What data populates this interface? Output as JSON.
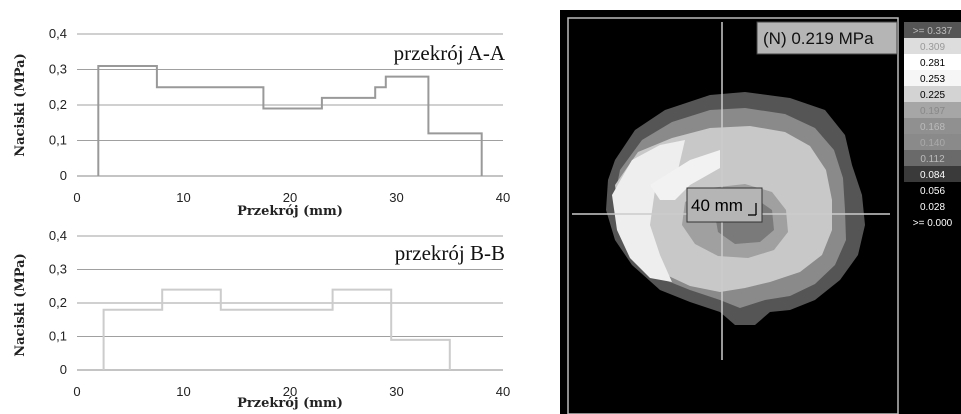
{
  "chart_data": [
    {
      "type": "line",
      "step": true,
      "title": "przekrój A-A",
      "xlabel": "Przekrój (mm)",
      "ylabel": "Naciski (MPa)",
      "xlim": [
        0,
        40
      ],
      "ylim": [
        0,
        0.4
      ],
      "xticks": [
        "0",
        "10",
        "20",
        "30",
        "40"
      ],
      "yticks": [
        "0",
        "0,1",
        "0,2",
        "0,3",
        "0,4"
      ],
      "grid": true,
      "series_color": "#999999",
      "points": [
        {
          "x": 2,
          "y": 0
        },
        {
          "x": 2,
          "y": 0.31
        },
        {
          "x": 7.5,
          "y": 0.31
        },
        {
          "x": 7.5,
          "y": 0.25
        },
        {
          "x": 17.5,
          "y": 0.25
        },
        {
          "x": 17.5,
          "y": 0.19
        },
        {
          "x": 23,
          "y": 0.19
        },
        {
          "x": 23,
          "y": 0.22
        },
        {
          "x": 28,
          "y": 0.22
        },
        {
          "x": 28,
          "y": 0.25
        },
        {
          "x": 29,
          "y": 0.25
        },
        {
          "x": 29,
          "y": 0.28
        },
        {
          "x": 33,
          "y": 0.28
        },
        {
          "x": 33,
          "y": 0.12
        },
        {
          "x": 38,
          "y": 0.12
        },
        {
          "x": 38,
          "y": 0
        }
      ]
    },
    {
      "type": "line",
      "step": true,
      "title": "przekrój B-B",
      "xlabel": "Przekrój (mm)",
      "ylabel": "Naciski (MPa)",
      "xlim": [
        0,
        40
      ],
      "ylim": [
        0,
        0.4
      ],
      "xticks": [
        "0",
        "10",
        "20",
        "30",
        "40"
      ],
      "yticks": [
        "0",
        "0,1",
        "0,2",
        "0,3",
        "0,4"
      ],
      "grid": true,
      "series_color": "#cccccc",
      "points": [
        {
          "x": 2.5,
          "y": 0
        },
        {
          "x": 2.5,
          "y": 0.18
        },
        {
          "x": 8,
          "y": 0.18
        },
        {
          "x": 8,
          "y": 0.24
        },
        {
          "x": 13.5,
          "y": 0.24
        },
        {
          "x": 13.5,
          "y": 0.18
        },
        {
          "x": 24,
          "y": 0.18
        },
        {
          "x": 24,
          "y": 0.24
        },
        {
          "x": 29.5,
          "y": 0.24
        },
        {
          "x": 29.5,
          "y": 0.09
        },
        {
          "x": 35,
          "y": 0.09
        },
        {
          "x": 35,
          "y": 0
        }
      ]
    },
    {
      "type": "heatmap",
      "readout": "(N) 0.219 MPa",
      "scale_label": "40 mm",
      "legend_position": "right",
      "legend": [
        {
          "label": ">= 0.337",
          "color": "#555555",
          "text_color": "#bbbbbb"
        },
        {
          "label": "0.309",
          "color": "#dddddd",
          "text_color": "#999999"
        },
        {
          "label": "0.281",
          "color": "#ffffff",
          "text_color": "#000000"
        },
        {
          "label": "0.253",
          "color": "#f6f6f6",
          "text_color": "#000000"
        },
        {
          "label": "0.225",
          "color": "#d3d3d3",
          "text_color": "#000000"
        },
        {
          "label": "0.197",
          "color": "#a6a6a6",
          "text_color": "#888888"
        },
        {
          "label": "0.168",
          "color": "#909090",
          "text_color": "#bbbbbb"
        },
        {
          "label": "0.140",
          "color": "#8a8a8a",
          "text_color": "#aaaaaa"
        },
        {
          "label": "0.112",
          "color": "#6a6a6a",
          "text_color": "#bbbbbb"
        },
        {
          "label": "0.084",
          "color": "#3a3a3a",
          "text_color": "#ffffff"
        },
        {
          "label": "0.056",
          "color": "#000000",
          "text_color": "#ffffff"
        },
        {
          "label": "0.028",
          "color": "#000000",
          "text_color": "#ffffff"
        },
        {
          "label": ">= 0.000",
          "color": "#000000",
          "text_color": "#ffffff"
        }
      ]
    }
  ]
}
